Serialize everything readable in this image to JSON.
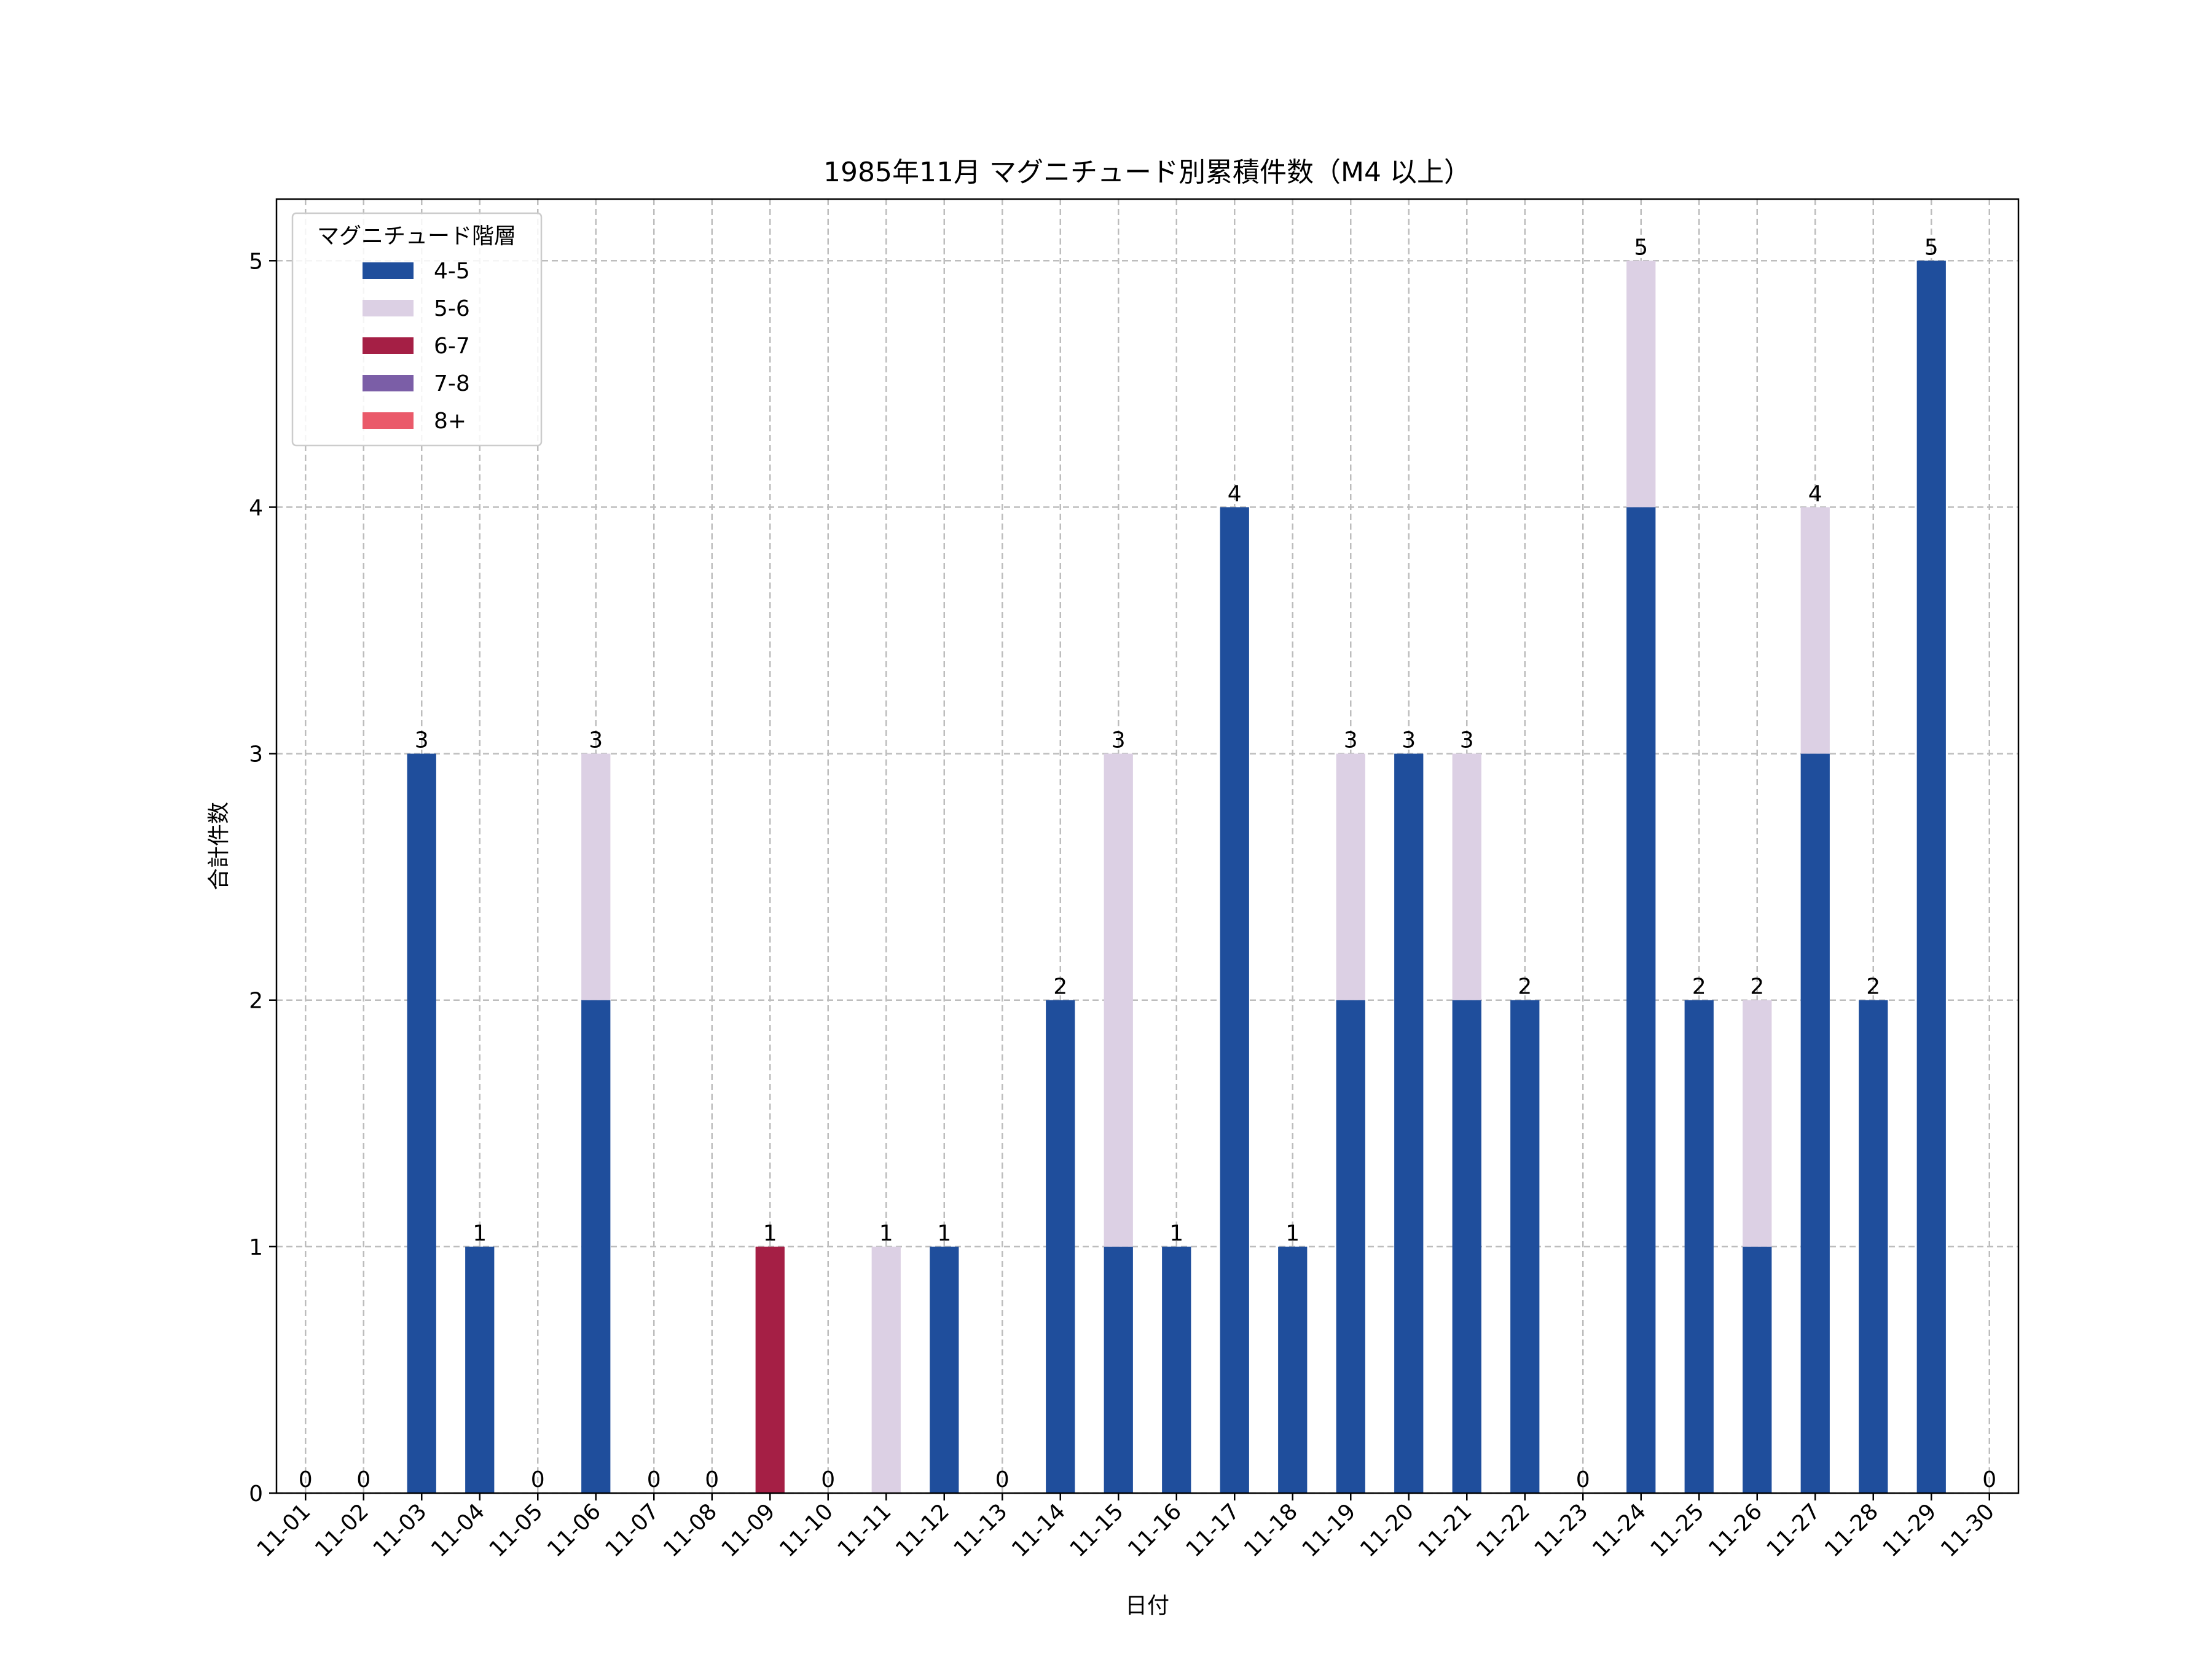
{
  "chart_data": {
    "type": "bar",
    "stacked": true,
    "title": "1985年11月 マグニチュード別累積件数（M4 以上）",
    "xlabel": "日付",
    "ylabel": "合計件数",
    "ylim": [
      0,
      5.25
    ],
    "yticks": [
      "0",
      "1",
      "2",
      "3",
      "4",
      "5"
    ],
    "grid": true,
    "legend": {
      "title": "マグニチュード階層",
      "position": "top-left"
    },
    "categories": [
      "11-01",
      "11-02",
      "11-03",
      "11-04",
      "11-05",
      "11-06",
      "11-07",
      "11-08",
      "11-09",
      "11-10",
      "11-11",
      "11-12",
      "11-13",
      "11-14",
      "11-15",
      "11-16",
      "11-17",
      "11-18",
      "11-19",
      "11-20",
      "11-21",
      "11-22",
      "11-23",
      "11-24",
      "11-25",
      "11-26",
      "11-27",
      "11-28",
      "11-29",
      "11-30"
    ],
    "series": [
      {
        "name": "4-5",
        "color": "#1f4e9c",
        "values": [
          0,
          0,
          3,
          1,
          0,
          2,
          0,
          0,
          0,
          0,
          0,
          1,
          0,
          2,
          1,
          1,
          4,
          1,
          2,
          3,
          2,
          2,
          0,
          4,
          2,
          1,
          3,
          2,
          5,
          0
        ]
      },
      {
        "name": "5-6",
        "color": "#dcd0e4",
        "values": [
          0,
          0,
          0,
          0,
          0,
          1,
          0,
          0,
          0,
          0,
          1,
          0,
          0,
          0,
          2,
          0,
          0,
          0,
          1,
          0,
          1,
          0,
          0,
          1,
          0,
          1,
          1,
          0,
          0,
          0
        ]
      },
      {
        "name": "6-7",
        "color": "#a51f45",
        "values": [
          0,
          0,
          0,
          0,
          0,
          0,
          0,
          0,
          1,
          0,
          0,
          0,
          0,
          0,
          0,
          0,
          0,
          0,
          0,
          0,
          0,
          0,
          0,
          0,
          0,
          0,
          0,
          0,
          0,
          0
        ]
      },
      {
        "name": "7-8",
        "color": "#7b5ea7",
        "values": [
          0,
          0,
          0,
          0,
          0,
          0,
          0,
          0,
          0,
          0,
          0,
          0,
          0,
          0,
          0,
          0,
          0,
          0,
          0,
          0,
          0,
          0,
          0,
          0,
          0,
          0,
          0,
          0,
          0,
          0
        ]
      },
      {
        "name": "8+",
        "color": "#ea5a6a",
        "values": [
          0,
          0,
          0,
          0,
          0,
          0,
          0,
          0,
          0,
          0,
          0,
          0,
          0,
          0,
          0,
          0,
          0,
          0,
          0,
          0,
          0,
          0,
          0,
          0,
          0,
          0,
          0,
          0,
          0,
          0
        ]
      }
    ],
    "totals": [
      "0",
      "0",
      "3",
      "1",
      "0",
      "3",
      "0",
      "0",
      "1",
      "0",
      "1",
      "1",
      "0",
      "2",
      "3",
      "1",
      "4",
      "1",
      "3",
      "3",
      "3",
      "2",
      "0",
      "5",
      "2",
      "2",
      "4",
      "2",
      "5",
      "0"
    ]
  }
}
